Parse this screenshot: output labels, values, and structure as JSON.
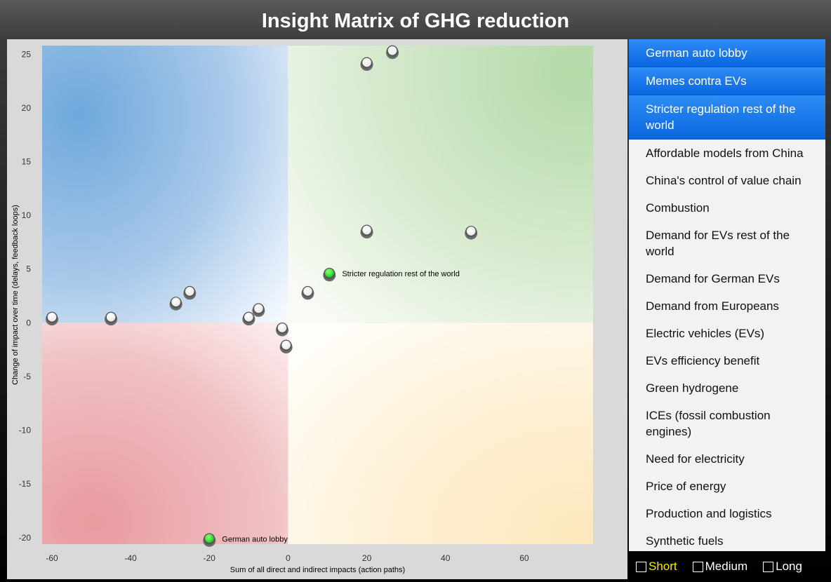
{
  "title": "Insight Matrix of GHG reduction",
  "chart_data": {
    "type": "scatter",
    "xlabel": "Sum of all direct and indirect impacts (action paths)",
    "ylabel": "Change of impact over time (delays, feedback loops)",
    "xlim": [
      -62.5,
      77.5
    ],
    "ylim": [
      -20.6,
      25.8
    ],
    "xticks": [
      -60,
      -40,
      -20,
      0,
      20,
      40,
      60
    ],
    "yticks": [
      25,
      20,
      15,
      10,
      5,
      0,
      -5,
      -10,
      -15,
      -20
    ],
    "quadrant_colors": {
      "top_left": "#6ea8dc",
      "top_right": "#b3d9a8",
      "bottom_left": "#e99a9f",
      "bottom_right": "#fde8bd"
    },
    "points": [
      {
        "x": 20,
        "y": 24.2,
        "highlighted": false,
        "label": ""
      },
      {
        "x": 26.5,
        "y": 25.3,
        "highlighted": false,
        "label": ""
      },
      {
        "x": 20,
        "y": 8.6,
        "highlighted": false,
        "label": ""
      },
      {
        "x": 46.5,
        "y": 8.5,
        "highlighted": false,
        "label": ""
      },
      {
        "x": 10.5,
        "y": 4.6,
        "highlighted": true,
        "label": "Stricter regulation rest of the world"
      },
      {
        "x": 5,
        "y": 2.9,
        "highlighted": false,
        "label": ""
      },
      {
        "x": -25,
        "y": 2.9,
        "highlighted": false,
        "label": ""
      },
      {
        "x": -28.5,
        "y": 1.9,
        "highlighted": false,
        "label": ""
      },
      {
        "x": -7.5,
        "y": 1.3,
        "highlighted": false,
        "label": ""
      },
      {
        "x": -10,
        "y": 0.5,
        "highlighted": false,
        "label": ""
      },
      {
        "x": -60,
        "y": 0.5,
        "highlighted": false,
        "label": ""
      },
      {
        "x": -45,
        "y": 0.5,
        "highlighted": false,
        "label": ""
      },
      {
        "x": -1.5,
        "y": -0.5,
        "highlighted": false,
        "label": ""
      },
      {
        "x": -0.5,
        "y": -2.1,
        "highlighted": false,
        "label": ""
      },
      {
        "x": -20,
        "y": -20.1,
        "highlighted": true,
        "label": "German auto lobby"
      }
    ]
  },
  "list": {
    "items": [
      {
        "label": "German auto lobby",
        "selected": true
      },
      {
        "label": "Memes contra EVs",
        "selected": true
      },
      {
        "label": "Stricter regulation rest of the world",
        "selected": true
      },
      {
        "label": "Affordable models from China",
        "selected": false
      },
      {
        "label": "China's control of value chain",
        "selected": false
      },
      {
        "label": "Combustion",
        "selected": false
      },
      {
        "label": "Demand for EVs rest of the world",
        "selected": false
      },
      {
        "label": "Demand for German EVs",
        "selected": false
      },
      {
        "label": "Demand from Europeans",
        "selected": false
      },
      {
        "label": "Electric vehicles (EVs)",
        "selected": false
      },
      {
        "label": "EVs efficiency benefit",
        "selected": false
      },
      {
        "label": "Green hydrogene",
        "selected": false
      },
      {
        "label": "ICEs (fossil combustion engines)",
        "selected": false
      },
      {
        "label": "Need for electricity",
        "selected": false
      },
      {
        "label": "Price of energy",
        "selected": false
      },
      {
        "label": "Production and logistics",
        "selected": false
      },
      {
        "label": "Synthetic fuels",
        "selected": false
      }
    ]
  },
  "filters": [
    {
      "label": "Short",
      "active": true
    },
    {
      "label": "Medium",
      "active": false
    },
    {
      "label": "Long",
      "active": false
    }
  ]
}
